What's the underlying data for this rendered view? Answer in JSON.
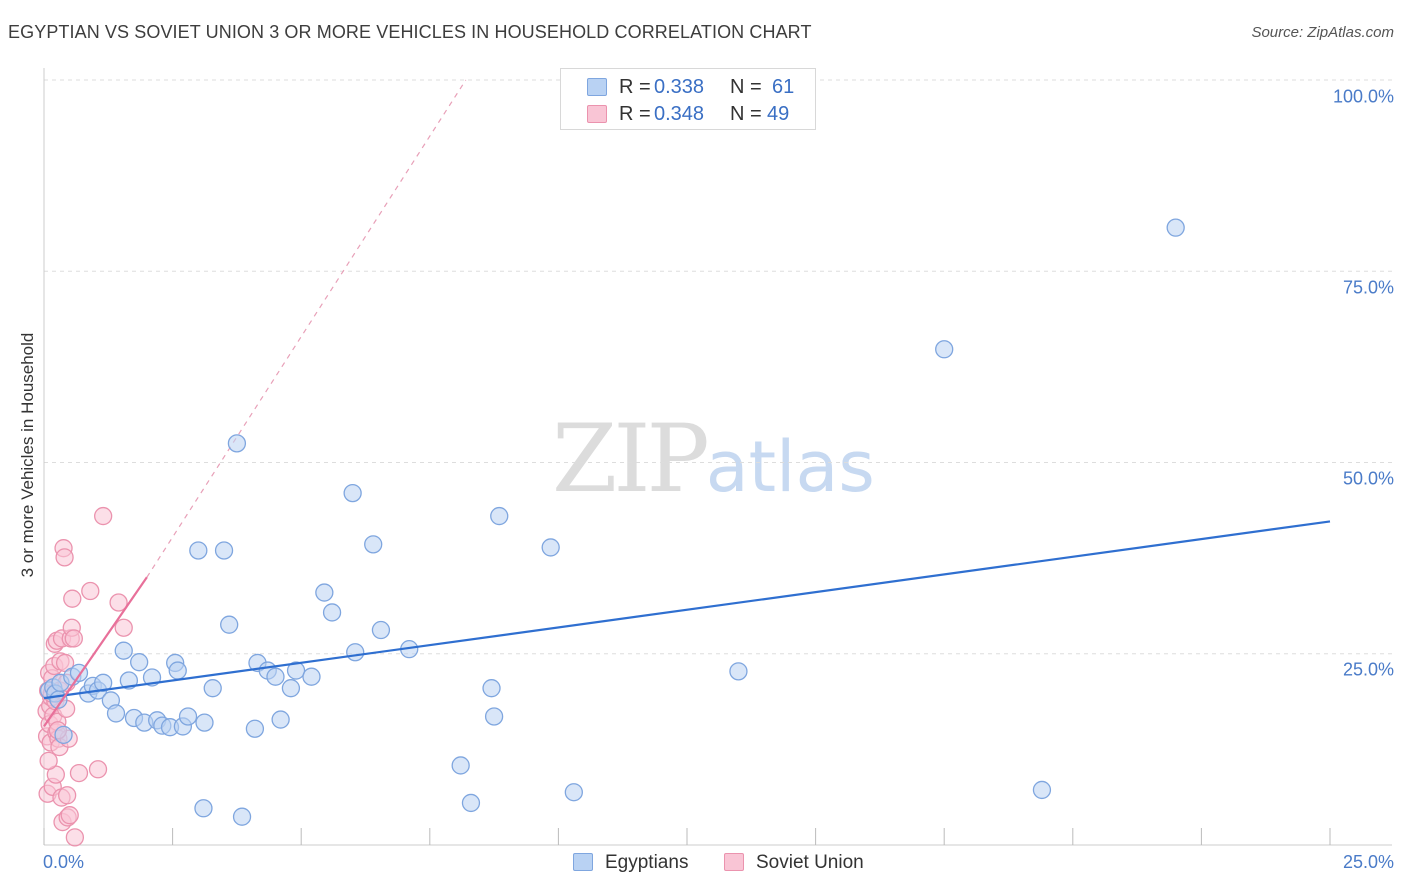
{
  "header": {
    "title": "EGYPTIAN VS SOVIET UNION 3 OR MORE VEHICLES IN HOUSEHOLD CORRELATION CHART",
    "source": "Source: ZipAtlas.com"
  },
  "watermark": {
    "zip": "ZIP",
    "atlas": "atlas"
  },
  "legend": {
    "rows": [
      {
        "r_label": "R =",
        "r_value": "0.338",
        "n_label": "N =",
        "n_value": "61"
      },
      {
        "r_label": "R =",
        "r_value": "0.348",
        "n_label": "N =",
        "n_value": "49"
      }
    ]
  },
  "bottom_legend": {
    "blue": "Egyptians",
    "pink": "Soviet Union"
  },
  "colors": {
    "blue_fill": "#b9d2f3",
    "blue_stroke": "#7fa6df",
    "blue_line": "#2f6fd0",
    "pink_fill": "#f9c5d5",
    "pink_stroke": "#eb93ae",
    "pink_line": "#e8709a",
    "grid": "#dddddd",
    "tick_text": "#4a7bc8"
  },
  "chart_data": {
    "type": "scatter",
    "title": "EGYPTIAN VS SOVIET UNION 3 OR MORE VEHICLES IN HOUSEHOLD CORRELATION CHART",
    "xlabel": "",
    "ylabel": "3 or more Vehicles in Household",
    "xlim": [
      0,
      25
    ],
    "ylim": [
      0,
      100
    ],
    "x_tick_labels": [
      "0.0%",
      "25.0%"
    ],
    "y_ticks": [
      25,
      50,
      75,
      100
    ],
    "y_tick_labels": [
      "25.0%",
      "50.0%",
      "75.0%",
      "100.0%"
    ],
    "grid": true,
    "series": [
      {
        "name": "Egyptians",
        "r": 0.338,
        "n": 61,
        "trend": {
          "x": [
            0,
            25
          ],
          "y": [
            19.2,
            42.3
          ],
          "style": "solid"
        },
        "points": [
          [
            0.1,
            20.2
          ],
          [
            0.18,
            20.6
          ],
          [
            0.22,
            19.8
          ],
          [
            0.28,
            19.0
          ],
          [
            0.32,
            21.2
          ],
          [
            0.38,
            14.4
          ],
          [
            0.55,
            22.0
          ],
          [
            0.68,
            22.5
          ],
          [
            0.86,
            19.8
          ],
          [
            0.95,
            20.8
          ],
          [
            1.05,
            20.2
          ],
          [
            1.15,
            21.2
          ],
          [
            1.3,
            18.9
          ],
          [
            1.4,
            17.2
          ],
          [
            1.55,
            25.4
          ],
          [
            1.65,
            21.5
          ],
          [
            1.75,
            16.6
          ],
          [
            1.85,
            23.9
          ],
          [
            1.95,
            16.0
          ],
          [
            2.1,
            21.9
          ],
          [
            2.2,
            16.3
          ],
          [
            2.3,
            15.6
          ],
          [
            2.45,
            15.4
          ],
          [
            2.55,
            23.8
          ],
          [
            2.6,
            22.8
          ],
          [
            2.7,
            15.5
          ],
          [
            2.8,
            16.8
          ],
          [
            3.0,
            38.5
          ],
          [
            3.1,
            4.8
          ],
          [
            3.12,
            16.0
          ],
          [
            3.28,
            20.5
          ],
          [
            3.5,
            38.5
          ],
          [
            3.6,
            28.8
          ],
          [
            3.75,
            52.5
          ],
          [
            3.85,
            3.7
          ],
          [
            4.1,
            15.2
          ],
          [
            4.15,
            23.8
          ],
          [
            4.35,
            22.8
          ],
          [
            4.5,
            22.0
          ],
          [
            4.6,
            16.4
          ],
          [
            4.8,
            20.5
          ],
          [
            4.9,
            22.8
          ],
          [
            5.2,
            22.0
          ],
          [
            5.45,
            33.0
          ],
          [
            5.6,
            30.4
          ],
          [
            6.0,
            46.0
          ],
          [
            6.05,
            25.2
          ],
          [
            6.4,
            39.3
          ],
          [
            6.55,
            28.1
          ],
          [
            7.1,
            25.6
          ],
          [
            8.1,
            10.4
          ],
          [
            8.3,
            5.5
          ],
          [
            8.7,
            20.5
          ],
          [
            8.75,
            16.8
          ],
          [
            8.85,
            43.0
          ],
          [
            9.85,
            38.9
          ],
          [
            10.3,
            6.9
          ],
          [
            13.5,
            22.7
          ],
          [
            17.5,
            64.8
          ],
          [
            19.4,
            7.2
          ],
          [
            22.0,
            80.7
          ]
        ]
      },
      {
        "name": "Soviet Union",
        "r": 0.348,
        "n": 49,
        "trend": {
          "x": [
            0,
            2.0
          ],
          "y": [
            15.5,
            35.0
          ],
          "style": "solid",
          "extended": {
            "x": [
              2.0,
              8.2
            ],
            "y": [
              35.0,
              100.0
            ],
            "style": "dashed"
          }
        },
        "points": [
          [
            0.05,
            17.5
          ],
          [
            0.06,
            14.2
          ],
          [
            0.07,
            6.7
          ],
          [
            0.08,
            20.2
          ],
          [
            0.1,
            22.5
          ],
          [
            0.11,
            15.8
          ],
          [
            0.12,
            18.2
          ],
          [
            0.13,
            13.4
          ],
          [
            0.14,
            19.3
          ],
          [
            0.16,
            21.8
          ],
          [
            0.17,
            7.6
          ],
          [
            0.18,
            16.9
          ],
          [
            0.2,
            23.4
          ],
          [
            0.21,
            26.3
          ],
          [
            0.22,
            18.8
          ],
          [
            0.23,
            9.2
          ],
          [
            0.24,
            14.7
          ],
          [
            0.25,
            26.7
          ],
          [
            0.26,
            16.1
          ],
          [
            0.28,
            13.9
          ],
          [
            0.3,
            12.8
          ],
          [
            0.31,
            20.2
          ],
          [
            0.32,
            24.0
          ],
          [
            0.34,
            6.2
          ],
          [
            0.35,
            27.0
          ],
          [
            0.36,
            3.0
          ],
          [
            0.38,
            38.8
          ],
          [
            0.4,
            37.6
          ],
          [
            0.41,
            23.8
          ],
          [
            0.43,
            17.8
          ],
          [
            0.45,
            6.5
          ],
          [
            0.46,
            3.6
          ],
          [
            0.48,
            13.9
          ],
          [
            0.5,
            3.9
          ],
          [
            0.52,
            27.0
          ],
          [
            0.54,
            28.4
          ],
          [
            0.55,
            32.2
          ],
          [
            0.58,
            27.0
          ],
          [
            0.6,
            1.0
          ],
          [
            0.68,
            9.4
          ],
          [
            0.9,
            33.2
          ],
          [
            1.05,
            9.9
          ],
          [
            1.15,
            43.0
          ],
          [
            1.45,
            31.7
          ],
          [
            1.55,
            28.4
          ],
          [
            0.15,
            19.8
          ],
          [
            0.27,
            15.0
          ],
          [
            0.44,
            21.2
          ],
          [
            0.09,
            11.0
          ]
        ]
      }
    ]
  }
}
